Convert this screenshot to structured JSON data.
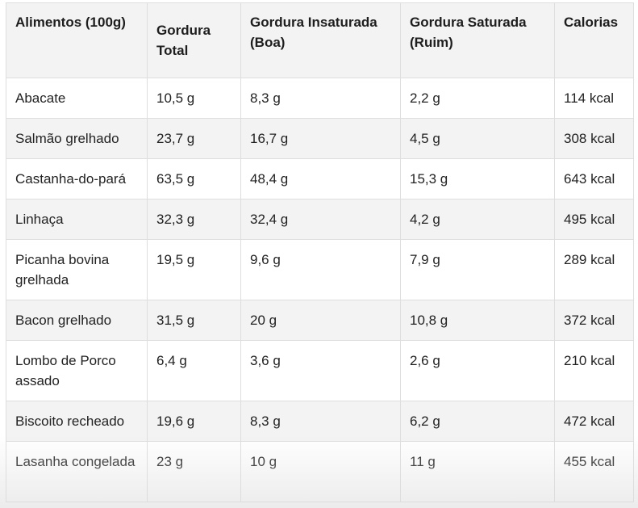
{
  "table": {
    "headers": [
      "Alimentos (100g)",
      "Gordura Total",
      "Gordura Insaturada (Boa)",
      "Gordura Saturada (Ruim)",
      "Calorias"
    ],
    "rows": [
      [
        "Abacate",
        "10,5 g",
        "8,3 g",
        "2,2 g",
        "114 kcal"
      ],
      [
        "Salmão grelhado",
        "23,7 g",
        "16,7 g",
        "4,5 g",
        "308 kcal"
      ],
      [
        "Castanha-do-pará",
        "63,5 g",
        "48,4 g",
        "15,3 g",
        "643 kcal"
      ],
      [
        "Linhaça",
        "32,3 g",
        "32,4 g",
        "4,2 g",
        "495 kcal"
      ],
      [
        "Picanha bovina grelhada",
        "19,5 g",
        "9,6 g",
        "7,9 g",
        "289 kcal"
      ],
      [
        "Bacon grelhado",
        "31,5 g",
        "20 g",
        "10,8 g",
        "372 kcal"
      ],
      [
        "Lombo de Porco assado",
        "6,4 g",
        "3,6 g",
        "2,6 g",
        "210 kcal"
      ],
      [
        "Biscoito recheado",
        "19,6 g",
        "8,3 g",
        "6,2 g",
        "472 kcal"
      ],
      [
        "Lasanha congelada",
        "23 g",
        "10 g",
        "11 g",
        "455 kcal"
      ]
    ]
  }
}
